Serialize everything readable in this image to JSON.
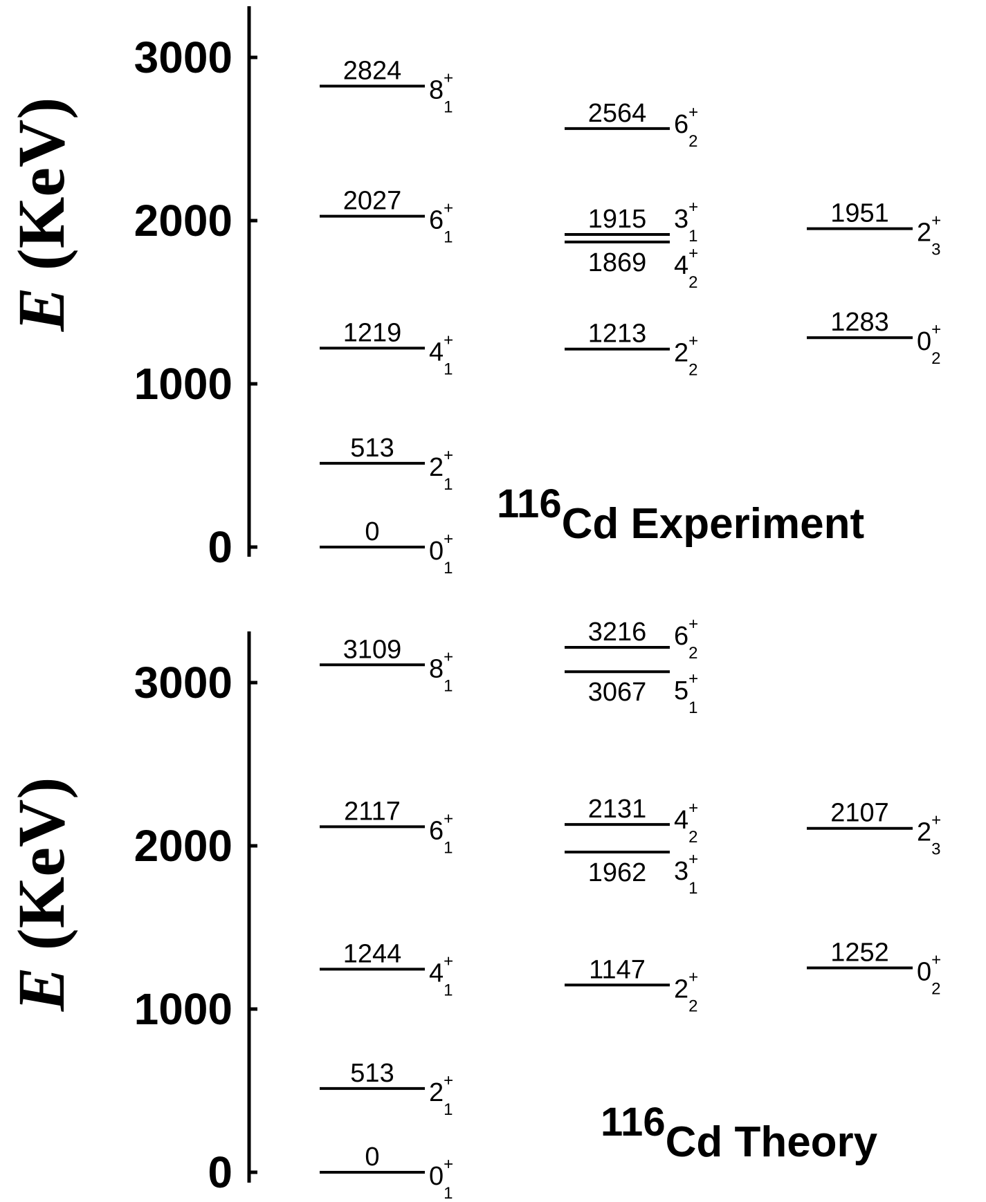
{
  "diagram": {
    "y_axis_title": {
      "italic": "E",
      "rest": " (KeV)"
    },
    "ticks": [
      0,
      1000,
      2000,
      3000
    ],
    "panels": [
      {
        "title_mass": "116",
        "title_text": "Cd Experiment",
        "columns": [
          [
            {
              "energy": 0,
              "label": "0",
              "J": "0",
              "parity": "+",
              "index": "1"
            },
            {
              "energy": 513,
              "label": "513",
              "J": "2",
              "parity": "+",
              "index": "1"
            },
            {
              "energy": 1219,
              "label": "1219",
              "J": "4",
              "parity": "+",
              "index": "1"
            },
            {
              "energy": 2027,
              "label": "2027",
              "J": "6",
              "parity": "+",
              "index": "1"
            },
            {
              "energy": 2824,
              "label": "2824",
              "J": "8",
              "parity": "+",
              "index": "1"
            }
          ],
          [
            {
              "energy": 1213,
              "label": "1213",
              "J": "2",
              "parity": "+",
              "index": "2"
            },
            {
              "energy": 1869,
              "label": "1869",
              "J": "4",
              "parity": "+",
              "index": "2"
            },
            {
              "energy": 1915,
              "label": "1915",
              "J": "3",
              "parity": "+",
              "index": "1"
            },
            {
              "energy": 2564,
              "label": "2564",
              "J": "6",
              "parity": "+",
              "index": "2"
            }
          ],
          [
            {
              "energy": 1283,
              "label": "1283",
              "J": "0",
              "parity": "+",
              "index": "2"
            },
            {
              "energy": 1951,
              "label": "1951",
              "J": "2",
              "parity": "+",
              "index": "3"
            }
          ]
        ]
      },
      {
        "title_mass": "116",
        "title_text": "Cd Theory",
        "columns": [
          [
            {
              "energy": 0,
              "label": "0",
              "J": "0",
              "parity": "+",
              "index": "1"
            },
            {
              "energy": 513,
              "label": "513",
              "J": "2",
              "parity": "+",
              "index": "1"
            },
            {
              "energy": 1244,
              "label": "1244",
              "J": "4",
              "parity": "+",
              "index": "1"
            },
            {
              "energy": 2117,
              "label": "2117",
              "J": "6",
              "parity": "+",
              "index": "1"
            },
            {
              "energy": 3109,
              "label": "3109",
              "J": "8",
              "parity": "+",
              "index": "1"
            }
          ],
          [
            {
              "energy": 1147,
              "label": "1147",
              "J": "2",
              "parity": "+",
              "index": "2"
            },
            {
              "energy": 1962,
              "label": "1962",
              "J": "3",
              "parity": "+",
              "index": "1"
            },
            {
              "energy": 2131,
              "label": "2131",
              "J": "4",
              "parity": "+",
              "index": "2"
            },
            {
              "energy": 3067,
              "label": "3067",
              "J": "5",
              "parity": "+",
              "index": "1"
            },
            {
              "energy": 3216,
              "label": "3216",
              "J": "6",
              "parity": "+",
              "index": "2"
            }
          ],
          [
            {
              "energy": 1252,
              "label": "1252",
              "J": "0",
              "parity": "+",
              "index": "2"
            },
            {
              "energy": 2107,
              "label": "2107",
              "J": "2",
              "parity": "+",
              "index": "3"
            }
          ]
        ]
      }
    ]
  }
}
